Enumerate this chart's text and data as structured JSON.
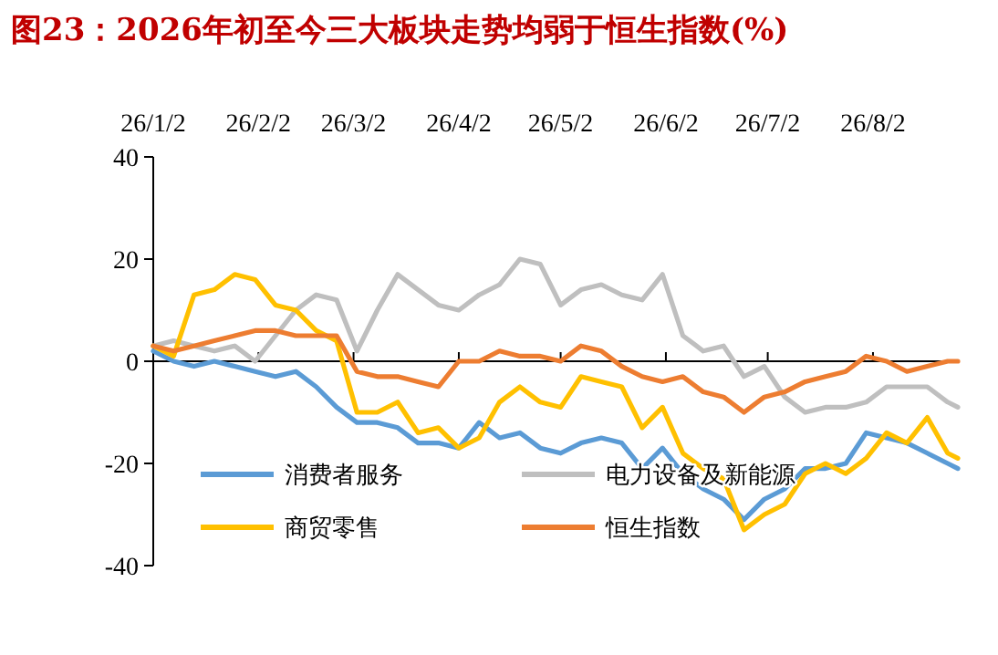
{
  "chart_data": {
    "type": "line",
    "title": "图23：2026年初至今三大板块走势均弱于恒生指数(%)",
    "x": [
      "2026-01-02",
      "2026-01-08",
      "2026-01-14",
      "2026-01-20",
      "2026-01-26",
      "2026-02-01",
      "2026-02-07",
      "2026-02-13",
      "2026-02-19",
      "2026-02-25",
      "2026-03-03",
      "2026-03-09",
      "2026-03-15",
      "2026-03-21",
      "2026-03-27",
      "2026-04-02",
      "2026-04-08",
      "2026-04-14",
      "2026-04-20",
      "2026-04-26",
      "2026-05-02",
      "2026-05-08",
      "2026-05-14",
      "2026-05-20",
      "2026-05-26",
      "2026-06-01",
      "2026-06-07",
      "2026-06-13",
      "2026-06-19",
      "2026-06-25",
      "2026-07-01",
      "2026-07-07",
      "2026-07-13",
      "2026-07-19",
      "2026-07-25",
      "2026-07-31",
      "2026-08-06",
      "2026-08-12",
      "2026-08-18",
      "2026-08-24",
      "2026-08-27"
    ],
    "series": [
      {
        "name": "消费者服务",
        "color": "#5b9bd5",
        "values": [
          2,
          0,
          -1,
          0,
          -1,
          -2,
          -3,
          -2,
          -5,
          -9,
          -12,
          -12,
          -13,
          -16,
          -16,
          -17,
          -12,
          -15,
          -14,
          -17,
          -18,
          -16,
          -15,
          -16,
          -21,
          -17,
          -22,
          -25,
          -27,
          -31,
          -27,
          -25,
          -21,
          -21,
          -20,
          -14,
          -15,
          -16,
          -18,
          -20,
          -21
        ]
      },
      {
        "name": "电力设备及新能源",
        "color": "#bfbfbf",
        "values": [
          3,
          4,
          3,
          2,
          3,
          0,
          5,
          10,
          13,
          12,
          2,
          10,
          17,
          14,
          11,
          10,
          13,
          15,
          20,
          19,
          11,
          14,
          15,
          13,
          12,
          17,
          5,
          2,
          3,
          -3,
          -1,
          -7,
          -10,
          -9,
          -9,
          -8,
          -5,
          -5,
          -5,
          -8,
          -9
        ]
      },
      {
        "name": "商贸零售",
        "color": "#ffc000",
        "values": [
          3,
          1,
          13,
          14,
          17,
          16,
          11,
          10,
          6,
          4,
          -10,
          -10,
          -8,
          -14,
          -13,
          -17,
          -15,
          -8,
          -5,
          -8,
          -9,
          -3,
          -4,
          -5,
          -13,
          -9,
          -18,
          -21,
          -23,
          -33,
          -30,
          -28,
          -22,
          -20,
          -22,
          -19,
          -14,
          -16,
          -11,
          -18,
          -19
        ]
      },
      {
        "name": "恒生指数",
        "color": "#ed7d31",
        "values": [
          3,
          2,
          3,
          4,
          5,
          6,
          6,
          5,
          5,
          5,
          -2,
          -3,
          -3,
          -4,
          -5,
          0,
          0,
          2,
          1,
          1,
          0,
          3,
          2,
          -1,
          -3,
          -4,
          -3,
          -6,
          -7,
          -10,
          -7,
          -6,
          -4,
          -3,
          -2,
          1,
          0,
          -2,
          -1,
          0,
          0
        ]
      }
    ],
    "xlim": [
      "2026-01-02",
      "2026-08-27"
    ],
    "xticks": [
      {
        "value": "2026-01-02",
        "label": "26/1/2"
      },
      {
        "value": "2026-02-02",
        "label": "26/2/2"
      },
      {
        "value": "2026-03-02",
        "label": "26/3/2"
      },
      {
        "value": "2026-04-02",
        "label": "26/4/2"
      },
      {
        "value": "2026-05-02",
        "label": "26/5/2"
      },
      {
        "value": "2026-06-02",
        "label": "26/6/2"
      },
      {
        "value": "2026-07-02",
        "label": "26/7/2"
      },
      {
        "value": "2026-08-02",
        "label": "26/8/2"
      }
    ],
    "ylim": [
      -40,
      40
    ],
    "yticks": [
      -40,
      -20,
      0,
      20,
      40
    ],
    "legend": "bottom",
    "marker": "none",
    "line_style": "solid"
  }
}
